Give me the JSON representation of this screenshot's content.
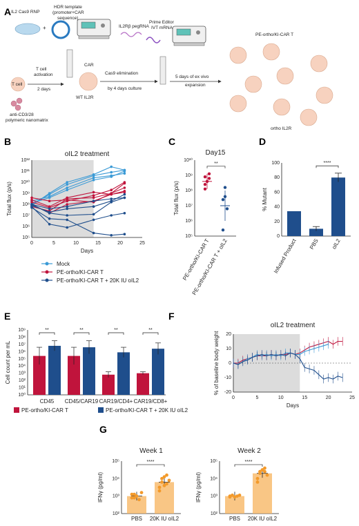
{
  "panels": [
    "A",
    "B",
    "C",
    "D",
    "E",
    "F",
    "G"
  ],
  "schematic": {
    "items": [
      "IL2 Cas9 RNP",
      "HDR template",
      "(promoter+CAR",
      "sequence)",
      "IL2Rβ pegRNA",
      "Prime Editor",
      "IVT mRNA",
      "T cell",
      "T cell",
      "activation",
      "2 days",
      "anti-CD3/28",
      "polymeric nanomatrix",
      "CAR",
      "WT IL2R",
      "Cas9 elimination",
      "by 4 days culture",
      "5 days of ex vivo",
      "expansion",
      "PE-ortho/KI-CAR T",
      "ortho IL2R",
      "+",
      "+"
    ]
  },
  "chart_data": [
    {
      "id": "B",
      "type": "line",
      "title": "oIL2 treatment",
      "xlabel": "Days",
      "ylabel": "Total flux (p/s)",
      "xlim": [
        0,
        25
      ],
      "ylim_log10": [
        5,
        12
      ],
      "xticks": [
        0,
        5,
        10,
        15,
        20,
        25
      ],
      "yticks": [
        "10⁵",
        "10⁶",
        "10⁷",
        "10⁸",
        "10⁹",
        "10¹⁰",
        "10¹¹",
        "10¹²"
      ],
      "shaded": [
        0,
        14
      ],
      "legend": [
        "Mock",
        "PE-ortho/KI-CAR T",
        "PE-ortho/KI-CAR T + 20K IU oIL2"
      ],
      "x": [
        0,
        4,
        8,
        14,
        18,
        21
      ],
      "series": [
        {
          "group": 0,
          "values": [
            8.3,
            8.7,
            9.5,
            10.4,
            10.6,
            10.8
          ]
        },
        {
          "group": 0,
          "values": [
            8.1,
            8.6,
            9.3,
            10.2,
            10.5,
            11.0
          ]
        },
        {
          "group": 0,
          "values": [
            8.0,
            8.9,
            9.8,
            10.6,
            10.9,
            11.1
          ]
        },
        {
          "group": 0,
          "values": [
            7.9,
            9.0,
            10.0,
            10.7,
            11.4,
            11.1
          ]
        },
        {
          "group": 1,
          "values": [
            8.2,
            7.7,
            8.3,
            8.8,
            9.3,
            10.0
          ]
        },
        {
          "group": 1,
          "values": [
            7.8,
            7.4,
            8.5,
            8.6,
            9.0,
            9.5
          ]
        },
        {
          "group": 1,
          "values": [
            8.4,
            7.8,
            8.6,
            9.1,
            8.9,
            9.2
          ]
        },
        {
          "group": 1,
          "values": [
            8.0,
            7.2,
            8.0,
            8.3,
            8.9,
            9.1
          ]
        },
        {
          "group": 1,
          "values": [
            8.6,
            8.3,
            8.4,
            8.2,
            9.0,
            9.9
          ]
        },
        {
          "group": 2,
          "values": [
            8.0,
            7.2,
            7.0,
            7.1,
            8.2,
            8.6
          ]
        },
        {
          "group": 2,
          "values": [
            7.9,
            7.3,
            7.6,
            7.8,
            8.3,
            8.9
          ]
        },
        {
          "group": 2,
          "values": [
            7.8,
            6.2,
            5.9,
            6.6,
            7.0,
            7.2
          ]
        },
        {
          "group": 2,
          "values": [
            8.0,
            7.6,
            7.8,
            8.3,
            8.5,
            8.6
          ]
        },
        {
          "group": 2,
          "values": [
            7.7,
            6.7,
            6.6,
            5.4,
            5.2,
            5.3
          ]
        }
      ]
    },
    {
      "id": "C",
      "type": "scatter",
      "title": "Day15",
      "ylabel": "Total flux (p/s)",
      "ylim_log10": [
        5,
        10
      ],
      "yticks": [
        "10⁵",
        "10⁶",
        "10⁷",
        "10⁸",
        "10⁹",
        "10¹⁰"
      ],
      "categories": [
        "PE-ortho/KI-CAR T",
        "PE-ortho/KI-CAR T + oIL2"
      ],
      "points": [
        [
          8.9,
          8.6,
          8.8,
          8.1,
          8.6,
          9.1,
          8.4
        ],
        [
          7.4,
          8.2,
          6.8,
          5.4,
          7.6
        ]
      ],
      "means": [
        8.6,
        7.0
      ],
      "sd": [
        0.5,
        1.0
      ],
      "significance": "**"
    },
    {
      "id": "D",
      "type": "bar",
      "ylabel": "% Mutant",
      "ylim": [
        0,
        100
      ],
      "yticks": [
        0,
        20,
        40,
        60,
        80,
        100
      ],
      "categories": [
        "Infused Product",
        "PBS",
        "oIL2"
      ],
      "values": [
        34,
        10,
        80
      ],
      "errors": [
        0,
        3,
        6
      ],
      "significance": "****"
    },
    {
      "id": "E",
      "type": "bar",
      "ylabel": "Cell count per mL",
      "ylim_log10": [
        0,
        9
      ],
      "yticks": [
        "10⁰",
        "10¹",
        "10²",
        "10³",
        "10⁴",
        "10⁵",
        "10⁶",
        "10⁷",
        "10⁸",
        "10⁹"
      ],
      "categories": [
        "CD45",
        "CD45/CAR19",
        "CAR19/CD4+",
        "CAR19/CD8+"
      ],
      "legend": [
        "PE-ortho/KI-CAR T",
        "PE-ortho/KI-CAR T + 20K IU oIL2"
      ],
      "series": [
        {
          "values_log10": [
            5.4,
            5.4,
            2.8,
            3.0
          ],
          "err": [
            1.2,
            1.2,
            0.4,
            0.2
          ]
        },
        {
          "values_log10": [
            6.8,
            6.6,
            5.9,
            6.4
          ],
          "err": [
            0.7,
            0.9,
            0.7,
            0.8
          ]
        }
      ],
      "significance": [
        "**",
        "**",
        "**",
        "**"
      ]
    },
    {
      "id": "F",
      "type": "line",
      "title": "oIL2 treatment",
      "xlabel": "Days",
      "ylabel": "% of baseline body weight",
      "xlim": [
        0,
        25
      ],
      "ylim": [
        -20,
        20
      ],
      "xticks": [
        0,
        5,
        10,
        15,
        20,
        25
      ],
      "yticks": [
        -20,
        -10,
        0,
        10,
        20
      ],
      "shaded": [
        0,
        14
      ],
      "x": [
        0,
        1,
        2,
        3,
        4,
        5,
        6,
        7,
        8,
        9,
        10,
        11,
        12,
        13,
        14,
        15,
        16,
        17,
        18,
        19,
        20,
        21,
        22,
        23
      ],
      "series": [
        {
          "group": 1,
          "values": [
            0,
            0,
            2,
            3,
            4,
            5,
            5,
            5,
            6,
            5,
            6,
            6,
            7,
            6,
            7,
            9,
            11,
            12,
            13,
            14,
            15,
            13,
            15,
            15
          ]
        },
        {
          "group": 0,
          "values": [
            0,
            -1,
            1,
            3,
            4,
            6,
            5,
            6,
            5,
            6,
            5,
            7,
            7,
            6,
            6,
            8,
            9,
            10,
            11,
            12,
            13,
            null,
            null,
            null
          ]
        },
        {
          "group": 2,
          "values": [
            0,
            -1,
            1,
            2,
            4,
            5,
            6,
            5,
            6,
            5,
            6,
            5,
            7,
            6,
            3,
            -3,
            -4,
            -5,
            -8,
            -11,
            -10,
            -11,
            -9,
            -10
          ]
        }
      ]
    },
    {
      "id": "G1",
      "type": "scatter",
      "title": "Week 1",
      "ylabel": "IFNγ (pg/ml)",
      "ylim_log10": [
        2,
        5
      ],
      "yticks": [
        "10²",
        "10³",
        "10⁴",
        "10⁵"
      ],
      "categories": [
        "PBS",
        "20K IU oIL2"
      ],
      "means_log10": [
        3.0,
        3.8
      ],
      "points": [
        [
          3.1,
          2.9,
          3.0,
          2.8,
          3.2,
          2.9,
          3.1
        ],
        [
          3.5,
          3.8,
          4.1,
          3.7,
          3.9,
          3.3,
          4.0,
          3.6,
          4.2
        ]
      ],
      "significance": "****"
    },
    {
      "id": "G2",
      "type": "scatter",
      "title": "Week 2",
      "ylabel": "IFNγ (pg/ml)",
      "ylim_log10": [
        2,
        5
      ],
      "yticks": [
        "10²",
        "10³",
        "10⁴",
        "10⁵"
      ],
      "categories": [
        "PBS",
        "20K IU oIL2"
      ],
      "means_log10": [
        3.0,
        4.3
      ],
      "points": [
        [
          3.0,
          3.05,
          2.95,
          3.0,
          3.05,
          2.95
        ],
        [
          4.0,
          4.3,
          4.5,
          4.4,
          4.2,
          3.8,
          4.4,
          4.5,
          4.6
        ]
      ],
      "significance": "****"
    }
  ],
  "colors": {
    "mock": "#3a9ad6",
    "car": "#c0143c",
    "oil2": "#1f4e8c",
    "bar": "#1f4e8c",
    "orange": "#f7b35c",
    "shade": "#dcdcdc"
  }
}
